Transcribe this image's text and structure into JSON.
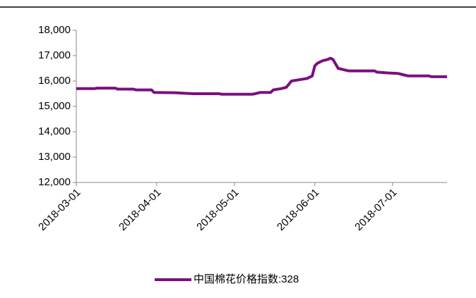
{
  "chart_data": {
    "type": "line",
    "x": [
      "2018-03-01",
      "2018-03-08",
      "2018-03-09",
      "2018-03-16",
      "2018-03-17",
      "2018-03-23",
      "2018-03-24",
      "2018-03-30",
      "2018-03-31",
      "2018-04-08",
      "2018-04-15",
      "2018-04-25",
      "2018-04-26",
      "2018-05-08",
      "2018-05-09",
      "2018-05-11",
      "2018-05-15",
      "2018-05-16",
      "2018-05-19",
      "2018-05-21",
      "2018-05-23",
      "2018-05-26",
      "2018-05-29",
      "2018-05-31",
      "2018-06-01",
      "2018-06-02",
      "2018-06-04",
      "2018-06-06",
      "2018-06-07",
      "2018-06-08",
      "2018-06-10",
      "2018-06-12",
      "2018-06-14",
      "2018-06-24",
      "2018-06-25",
      "2018-06-29",
      "2018-07-03",
      "2018-07-05",
      "2018-07-07",
      "2018-07-15",
      "2018-07-16",
      "2018-07-22"
    ],
    "series": [
      {
        "name": "中国棉花价格指数:328",
        "color": "#7b0f7f",
        "values": [
          15700,
          15700,
          15720,
          15720,
          15680,
          15680,
          15650,
          15650,
          15550,
          15540,
          15500,
          15500,
          15480,
          15480,
          15500,
          15550,
          15550,
          15650,
          15700,
          15750,
          16000,
          16050,
          16100,
          16200,
          16600,
          16700,
          16800,
          16850,
          16900,
          16850,
          16500,
          16450,
          16400,
          16400,
          16350,
          16320,
          16300,
          16250,
          16200,
          16200,
          16170,
          16170
        ]
      }
    ],
    "xlim": [
      "2018-03-01",
      "2018-07-22"
    ],
    "xticks": [
      "2018-03-01",
      "2018-04-01",
      "2018-05-01",
      "2018-06-01",
      "2018-07-01"
    ],
    "ylim": [
      12000,
      18000
    ],
    "yticks": [
      {
        "value": 12000,
        "label": "12,000"
      },
      {
        "value": 13000,
        "label": "13,000"
      },
      {
        "value": 14000,
        "label": "14,000"
      },
      {
        "value": 15000,
        "label": "15,000"
      },
      {
        "value": 16000,
        "label": "16,000"
      },
      {
        "value": 17000,
        "label": "17,000"
      },
      {
        "value": 18000,
        "label": "18,000"
      }
    ],
    "legend": "bottom"
  }
}
